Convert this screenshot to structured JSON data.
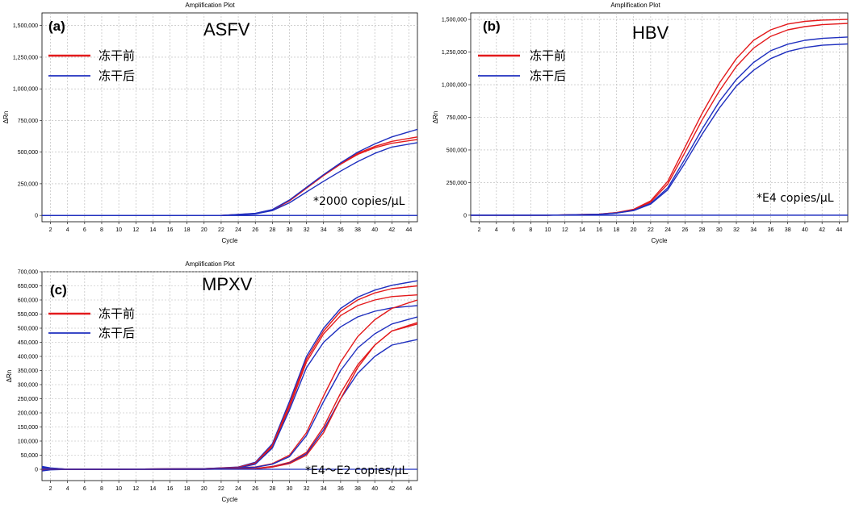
{
  "chart_data": [
    {
      "type": "line",
      "title": "Amplification Plot",
      "panel_label": "(a)",
      "target": "ASFV",
      "xlabel": "Cycle",
      "ylabel": "ΔRn",
      "xlim": [
        1,
        45
      ],
      "ylim": [
        -50000,
        1600000
      ],
      "xticks": [
        2,
        4,
        6,
        8,
        10,
        12,
        14,
        16,
        18,
        20,
        22,
        24,
        26,
        28,
        30,
        32,
        34,
        36,
        38,
        40,
        42,
        44
      ],
      "yticks": [
        0,
        250000,
        500000,
        750000,
        1000000,
        1250000,
        1500000
      ],
      "ytick_labels": [
        "0",
        "250,000",
        "500,000",
        "750,000",
        "1,000,000",
        "1,250,000",
        "1,500,000"
      ],
      "grid": true,
      "legend": [
        {
          "label": "冻干前",
          "color": "#e31a1c"
        },
        {
          "label": "冻干后",
          "color": "#1f2fbf"
        }
      ],
      "annotation": "*2000 copies/μL",
      "series": [
        {
          "group": "冻干前",
          "color": "#e31a1c",
          "x": [
            1,
            22,
            26,
            28,
            30,
            32,
            34,
            36,
            38,
            40,
            42,
            45
          ],
          "y": [
            0,
            0,
            15000,
            45000,
            120000,
            220000,
            320000,
            410000,
            490000,
            545000,
            585000,
            620000
          ]
        },
        {
          "group": "冻干前",
          "color": "#e31a1c",
          "x": [
            1,
            22,
            26,
            28,
            30,
            32,
            34,
            36,
            38,
            40,
            42,
            45
          ],
          "y": [
            0,
            0,
            14000,
            42000,
            115000,
            215000,
            315000,
            405000,
            482000,
            535000,
            570000,
            600000
          ]
        },
        {
          "group": "冻干后",
          "color": "#1f2fbf",
          "x": [
            1,
            22,
            26,
            28,
            30,
            32,
            34,
            36,
            38,
            40,
            42,
            45
          ],
          "y": [
            0,
            0,
            16000,
            46000,
            122000,
            222000,
            322000,
            415000,
            500000,
            565000,
            620000,
            680000
          ]
        },
        {
          "group": "冻干后",
          "color": "#1f2fbf",
          "x": [
            1,
            22,
            26,
            28,
            30,
            32,
            34,
            36,
            38,
            40,
            42,
            45
          ],
          "y": [
            0,
            0,
            12000,
            38000,
            100000,
            185000,
            270000,
            350000,
            425000,
            490000,
            540000,
            575000
          ]
        },
        {
          "group": "冻干后",
          "color": "#1f2fbf",
          "x": [
            1,
            45
          ],
          "y": [
            0,
            0
          ]
        }
      ]
    },
    {
      "type": "line",
      "title": "Amplification Plot",
      "panel_label": "(b)",
      "target": "HBV",
      "xlabel": "Cycle",
      "ylabel": "ΔRn",
      "xlim": [
        1,
        45
      ],
      "ylim": [
        -50000,
        1550000
      ],
      "xticks": [
        2,
        4,
        6,
        8,
        10,
        12,
        14,
        16,
        18,
        20,
        22,
        24,
        26,
        28,
        30,
        32,
        34,
        36,
        38,
        40,
        42,
        44
      ],
      "yticks": [
        0,
        250000,
        500000,
        750000,
        1000000,
        1250000,
        1500000
      ],
      "ytick_labels": [
        "0",
        "250,000",
        "500,000",
        "750,000",
        "1,000,000",
        "1,250,000",
        "1,500,000"
      ],
      "grid": true,
      "legend": [
        {
          "label": "冻干前",
          "color": "#e31a1c"
        },
        {
          "label": "冻干后",
          "color": "#1f2fbf"
        }
      ],
      "annotation": "*E4 copies/μL",
      "series": [
        {
          "group": "冻干前",
          "color": "#e31a1c",
          "x": [
            1,
            10,
            16,
            18,
            20,
            22,
            24,
            26,
            28,
            30,
            32,
            34,
            36,
            38,
            40,
            42,
            45
          ],
          "y": [
            0,
            0,
            8000,
            20000,
            45000,
            110000,
            260000,
            520000,
            780000,
            1010000,
            1200000,
            1340000,
            1420000,
            1465000,
            1485000,
            1495000,
            1500000
          ]
        },
        {
          "group": "冻干前",
          "color": "#e31a1c",
          "x": [
            1,
            10,
            16,
            18,
            20,
            22,
            24,
            26,
            28,
            30,
            32,
            34,
            36,
            38,
            40,
            42,
            45
          ],
          "y": [
            0,
            0,
            8000,
            19000,
            42000,
            100000,
            240000,
            480000,
            730000,
            950000,
            1140000,
            1280000,
            1370000,
            1420000,
            1445000,
            1460000,
            1470000
          ]
        },
        {
          "group": "冻干后",
          "color": "#1f2fbf",
          "x": [
            1,
            10,
            16,
            18,
            20,
            22,
            24,
            26,
            28,
            30,
            32,
            34,
            36,
            38,
            40,
            42,
            45
          ],
          "y": [
            0,
            0,
            7000,
            17000,
            38000,
            90000,
            210000,
            430000,
            660000,
            870000,
            1040000,
            1170000,
            1260000,
            1310000,
            1340000,
            1355000,
            1365000
          ]
        },
        {
          "group": "冻干后",
          "color": "#1f2fbf",
          "x": [
            1,
            10,
            16,
            18,
            20,
            22,
            24,
            26,
            28,
            30,
            32,
            34,
            36,
            38,
            40,
            42,
            45
          ],
          "y": [
            0,
            0,
            7000,
            16000,
            35000,
            85000,
            195000,
            400000,
            620000,
            820000,
            990000,
            1110000,
            1200000,
            1255000,
            1285000,
            1302000,
            1312000
          ]
        },
        {
          "group": "冻干后",
          "color": "#1f2fbf",
          "x": [
            1,
            45
          ],
          "y": [
            0,
            0
          ]
        }
      ]
    },
    {
      "type": "line",
      "title": "Amplification Plot",
      "panel_label": "(c)",
      "target": "MPXV",
      "xlabel": "Cycle",
      "ylabel": "ΔRn",
      "xlim": [
        1,
        45
      ],
      "ylim": [
        -40000,
        700000
      ],
      "xticks": [
        2,
        4,
        6,
        8,
        10,
        12,
        14,
        16,
        18,
        20,
        22,
        24,
        26,
        28,
        30,
        32,
        34,
        36,
        38,
        40,
        42,
        44
      ],
      "yticks": [
        0,
        50000,
        100000,
        150000,
        200000,
        250000,
        300000,
        350000,
        400000,
        450000,
        500000,
        550000,
        600000,
        650000,
        700000
      ],
      "ytick_labels": [
        "0",
        "50,000",
        "100,000",
        "150,000",
        "200,000",
        "250,000",
        "300,000",
        "350,000",
        "400,000",
        "450,000",
        "500,000",
        "550,000",
        "600,000",
        "650,000",
        "700,000"
      ],
      "grid": true,
      "legend": [
        {
          "label": "冻干前",
          "color": "#e31a1c"
        },
        {
          "label": "冻干后",
          "color": "#1f2fbf"
        }
      ],
      "annotation": "*E4～E2 copies/μL",
      "series": [
        {
          "group": "冻干后",
          "color": "#1f2fbf",
          "x": [
            1,
            2,
            4,
            8,
            20,
            24,
            26,
            28,
            30,
            32,
            34,
            36,
            38,
            40,
            42,
            45
          ],
          "y": [
            5000,
            3000,
            0,
            0,
            2000,
            8000,
            25000,
            90000,
            240000,
            400000,
            500000,
            570000,
            610000,
            635000,
            652000,
            668000
          ]
        },
        {
          "group": "冻干前",
          "color": "#e31a1c",
          "x": [
            1,
            2,
            4,
            8,
            20,
            24,
            26,
            28,
            30,
            32,
            34,
            36,
            38,
            40,
            42,
            45
          ],
          "y": [
            -3000,
            0,
            0,
            0,
            2000,
            7000,
            22000,
            85000,
            230000,
            390000,
            490000,
            560000,
            600000,
            625000,
            640000,
            650000
          ]
        },
        {
          "group": "冻干前",
          "color": "#e31a1c",
          "x": [
            1,
            2,
            4,
            8,
            20,
            24,
            26,
            28,
            30,
            32,
            34,
            36,
            38,
            40,
            42,
            45
          ],
          "y": [
            -2000,
            0,
            0,
            0,
            2000,
            6000,
            20000,
            80000,
            220000,
            380000,
            480000,
            545000,
            580000,
            600000,
            612000,
            618000
          ]
        },
        {
          "group": "冻干后",
          "color": "#1f2fbf",
          "x": [
            1,
            2,
            4,
            8,
            20,
            24,
            26,
            28,
            30,
            32,
            34,
            36,
            38,
            40,
            42,
            45
          ],
          "y": [
            8000,
            4000,
            0,
            0,
            2000,
            5000,
            18000,
            75000,
            210000,
            360000,
            450000,
            505000,
            540000,
            560000,
            572000,
            580000
          ]
        },
        {
          "group": "冻干前",
          "color": "#e31a1c",
          "x": [
            1,
            2,
            4,
            8,
            20,
            26,
            28,
            30,
            32,
            34,
            36,
            38,
            40,
            42,
            45
          ],
          "y": [
            0,
            0,
            0,
            0,
            2000,
            8000,
            20000,
            50000,
            130000,
            260000,
            380000,
            470000,
            530000,
            570000,
            600000
          ]
        },
        {
          "group": "冻干后",
          "color": "#1f2fbf",
          "x": [
            1,
            2,
            4,
            8,
            20,
            26,
            28,
            30,
            32,
            34,
            36,
            38,
            40,
            42,
            45
          ],
          "y": [
            10000,
            5000,
            0,
            0,
            2000,
            7000,
            18000,
            45000,
            120000,
            240000,
            350000,
            430000,
            480000,
            515000,
            540000
          ]
        },
        {
          "group": "冻干前",
          "color": "#e31a1c",
          "x": [
            1,
            2,
            4,
            8,
            20,
            26,
            28,
            30,
            32,
            34,
            36,
            38,
            40,
            42,
            45
          ],
          "y": [
            -4000,
            0,
            0,
            0,
            0,
            3000,
            10000,
            25000,
            60000,
            150000,
            270000,
            370000,
            440000,
            490000,
            520000
          ]
        },
        {
          "group": "冻干后",
          "color": "#1f2fbf",
          "x": [
            1,
            2,
            4,
            8,
            20,
            26,
            28,
            30,
            32,
            34,
            36,
            38,
            40,
            42,
            45
          ],
          "y": [
            -6000,
            -2000,
            0,
            0,
            0,
            2000,
            8000,
            22000,
            55000,
            140000,
            250000,
            340000,
            400000,
            440000,
            460000
          ]
        },
        {
          "group": "冻干前",
          "color": "#e31a1c",
          "x": [
            1,
            2,
            4,
            8,
            20,
            26,
            28,
            30,
            32,
            34,
            36,
            38,
            40,
            42,
            45
          ],
          "y": [
            0,
            0,
            0,
            0,
            0,
            2000,
            8000,
            20000,
            50000,
            130000,
            250000,
            360000,
            440000,
            490000,
            515000
          ]
        }
      ]
    }
  ]
}
